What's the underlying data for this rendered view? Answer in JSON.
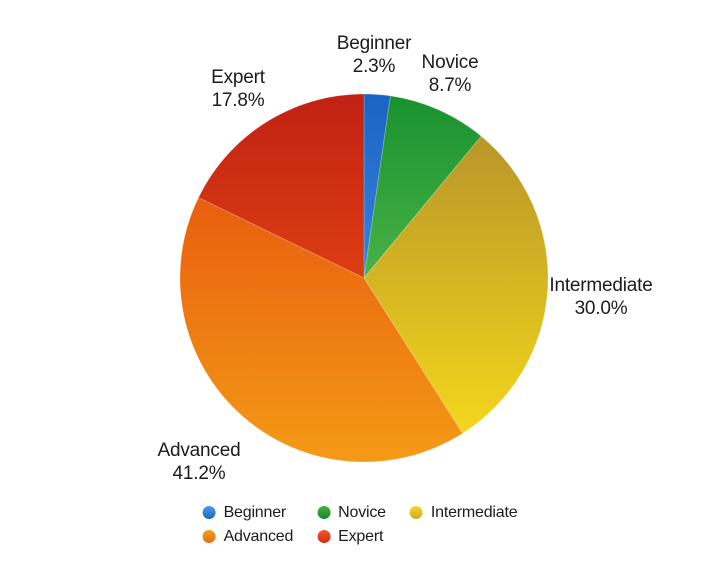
{
  "chart_data": {
    "type": "pie",
    "title": "",
    "categories": [
      "Beginner",
      "Novice",
      "Intermediate",
      "Advanced",
      "Expert"
    ],
    "values": [
      2.3,
      8.7,
      30.0,
      41.2,
      17.8
    ],
    "unit": "%",
    "start_angle_deg": 0,
    "direction": "clockwise",
    "legend_position": "bottom",
    "slices": [
      {
        "label": "Beginner",
        "value": 2.3,
        "pct_text": "2.3%",
        "color_top": "#1b63c4",
        "color_bottom": "#55a0f0",
        "legend_top": "#4f9ae8",
        "legend_bottom": "#1c68c5"
      },
      {
        "label": "Novice",
        "value": 8.7,
        "pct_text": "8.7%",
        "color_top": "#17912e",
        "color_bottom": "#7dd35f",
        "legend_top": "#45b23e",
        "legend_bottom": "#14882a"
      },
      {
        "label": "Intermediate",
        "value": 30.0,
        "pct_text": "30.0%",
        "color_top": "#b08d2a",
        "color_bottom": "#f9dd1b",
        "legend_top": "#f0da2d",
        "legend_bottom": "#d0a921"
      },
      {
        "label": "Advanced",
        "value": 41.2,
        "pct_text": "41.2%",
        "color_top": "#e4470b",
        "color_bottom": "#f49a16",
        "legend_top": "#f59e1c",
        "legend_bottom": "#e57110"
      },
      {
        "label": "Expert",
        "value": 17.8,
        "pct_text": "17.8%",
        "color_top": "#c02113",
        "color_bottom": "#fa5a10",
        "legend_top": "#ee5a2b",
        "legend_bottom": "#d42a10"
      }
    ]
  },
  "colors": {
    "background": "#ffffff",
    "label_text": "#1c1c1e",
    "slice_seam": "rgba(255,255,255,0.25)"
  }
}
